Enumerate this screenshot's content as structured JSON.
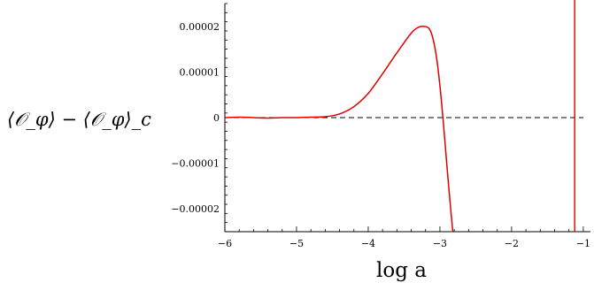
{
  "chart_data": {
    "type": "line",
    "title": "",
    "xlabel": "log a",
    "ylabel": "⟨𝒪_φ⟩ − ⟨𝒪_φ⟩_c",
    "xlim": [
      -6,
      -0.9
    ],
    "ylim": [
      -2.5e-05,
      2.5e-05
    ],
    "x_ticks": [
      -6,
      -5,
      -4,
      -3,
      -2,
      -1
    ],
    "x_tick_labels": [
      "−6",
      "−5",
      "−4",
      "−3",
      "−2",
      "−1"
    ],
    "y_ticks": [
      -2e-05,
      -1e-05,
      0,
      1e-05,
      2e-05
    ],
    "y_tick_labels": [
      "−0.00002",
      "−0.00001",
      "0",
      "0.00001",
      "0.00002"
    ],
    "grid": false,
    "colors": {
      "curve": "#e00000",
      "vline": "#e00000",
      "zero_line": "#000000"
    },
    "series": [
      {
        "style": "solid",
        "x": [
          -6.0,
          -5.8,
          -5.6,
          -5.4,
          -5.2,
          -5.0,
          -4.8,
          -4.6,
          -4.4,
          -4.2,
          -4.0,
          -3.8,
          -3.6,
          -3.4,
          -3.3,
          -3.22,
          -3.15,
          -3.1,
          -3.05,
          -3.0,
          -2.95,
          -2.9,
          -2.85,
          -2.82
        ],
        "y": [
          0.0,
          1e-07,
          0.0,
          -1e-07,
          0.0,
          0.0,
          1e-07,
          2e-07,
          8e-07,
          2.4e-06,
          5.3e-06,
          9.6e-06,
          1.42e-05,
          1.85e-05,
          1.98e-05,
          2e-05,
          1.95e-05,
          1.75e-05,
          1.35e-05,
          7e-06,
          -1.5e-06,
          -1.1e-05,
          -2e-05,
          -2.5e-05
        ]
      }
    ],
    "reference_lines": [
      {
        "orientation": "horizontal",
        "value": 0,
        "style": "dashed"
      },
      {
        "orientation": "vertical",
        "value": -1.12,
        "style": "solid"
      }
    ]
  }
}
